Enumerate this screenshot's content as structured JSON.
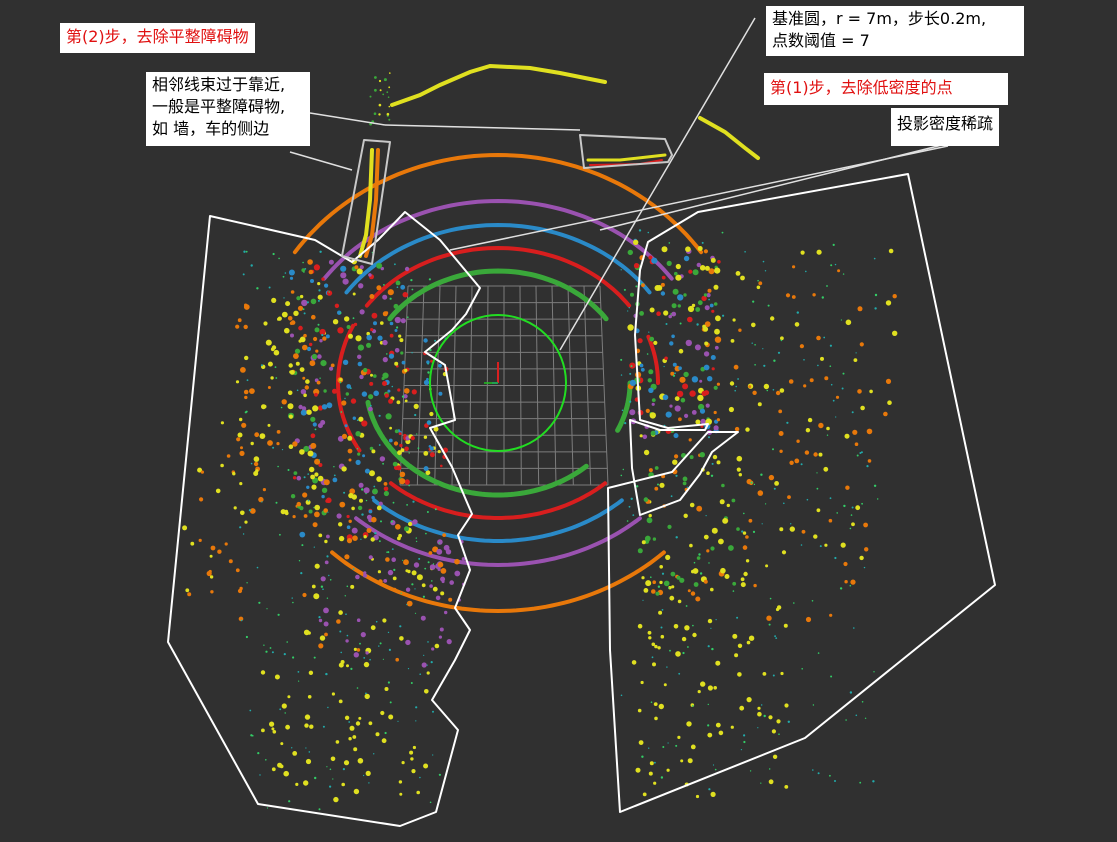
{
  "annotations": {
    "step2": "第(2)步，去除平整障碍物",
    "step1": "第(1)步，去除低密度的点",
    "baseline_circle": [
      "基准圆，r = 7m，步长0.2m,",
      "点数阈值 = 7"
    ],
    "adjacent_lines": [
      "相邻线束过于靠近,",
      "一般是平整障碍物,",
      "如 墙，车的侧边"
    ],
    "sparse_density": "投影密度稀疏"
  },
  "colors": {
    "background": "#303030",
    "annotation_red": "#e01010",
    "ring_green": "#3aa83a",
    "ring_red": "#d81e1e",
    "ring_blue": "#2a8ac8",
    "ring_purple": "#9a52b0",
    "ring_orange": "#e8780a",
    "ring_yellow": "#e0e020",
    "base_circle": "#22dd22",
    "grid": "#8a8a8a",
    "outline": "#ffffff"
  },
  "icons": [
    "origin-axes-icon"
  ]
}
